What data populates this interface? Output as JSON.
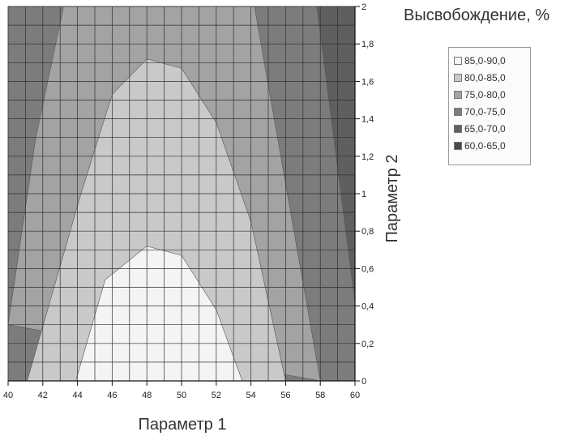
{
  "chart_data": {
    "type": "heatmap",
    "subtype": "filled-contour",
    "legend_title": "Высвобождение, %",
    "xlabel": "Параметр 1",
    "ylabel": "Параметр 2",
    "x_ticks": [
      "40",
      "42",
      "44",
      "46",
      "48",
      "50",
      "52",
      "54",
      "56",
      "58",
      "60"
    ],
    "y_ticks": [
      "0",
      "0,2",
      "0,4",
      "0,6",
      "0,8",
      "1",
      "1,2",
      "1,4",
      "1,6",
      "1,8",
      "2"
    ],
    "xlim": [
      40,
      60
    ],
    "ylim": [
      0,
      2
    ],
    "grid": true,
    "legend_position": "right",
    "levels": [
      {
        "label": "85,0-90,0",
        "range": [
          85,
          90
        ],
        "color": "#f4f4f4",
        "boundary": [
          [
            43.9,
            0
          ],
          [
            45.6,
            0.54
          ],
          [
            48,
            0.72
          ],
          [
            50,
            0.67
          ],
          [
            52,
            0.38
          ],
          [
            53.5,
            0
          ]
        ]
      },
      {
        "label": "80,0-85,0",
        "range": [
          80,
          85
        ],
        "color": "#c9c9c9",
        "boundary": [
          [
            41.1,
            0
          ],
          [
            44.2,
            1.0
          ],
          [
            46,
            1.53
          ],
          [
            48,
            1.72
          ],
          [
            50,
            1.67
          ],
          [
            52,
            1.38
          ],
          [
            54,
            0.85
          ],
          [
            56,
            0
          ]
        ]
      },
      {
        "label": "75,0-80,0",
        "range": [
          75,
          80
        ],
        "color": "#a3a3a3",
        "boundary": [
          [
            40,
            0.3
          ],
          [
            41.6,
            1.3
          ],
          [
            43.2,
            2.0
          ],
          [
            54.2,
            2.0
          ],
          [
            58,
            0
          ]
        ]
      },
      {
        "label": "70,0-75,0",
        "range": [
          70,
          75
        ],
        "color": "#7c7c7c",
        "boundary": [
          [
            40,
            2.0
          ],
          [
            40,
            0
          ],
          [
            60,
            0
          ],
          [
            60,
            2.0
          ]
        ]
      },
      {
        "label": "65,0-70,0",
        "range": [
          65,
          70
        ],
        "color": "#5f5f5f",
        "boundary": [
          [
            57.8,
            2.0
          ],
          [
            60,
            0.42
          ],
          [
            60,
            2.0
          ]
        ]
      },
      {
        "label": "60,0-65,0",
        "range": [
          60,
          65
        ],
        "color": "#4a4a4a",
        "boundary": []
      }
    ]
  }
}
